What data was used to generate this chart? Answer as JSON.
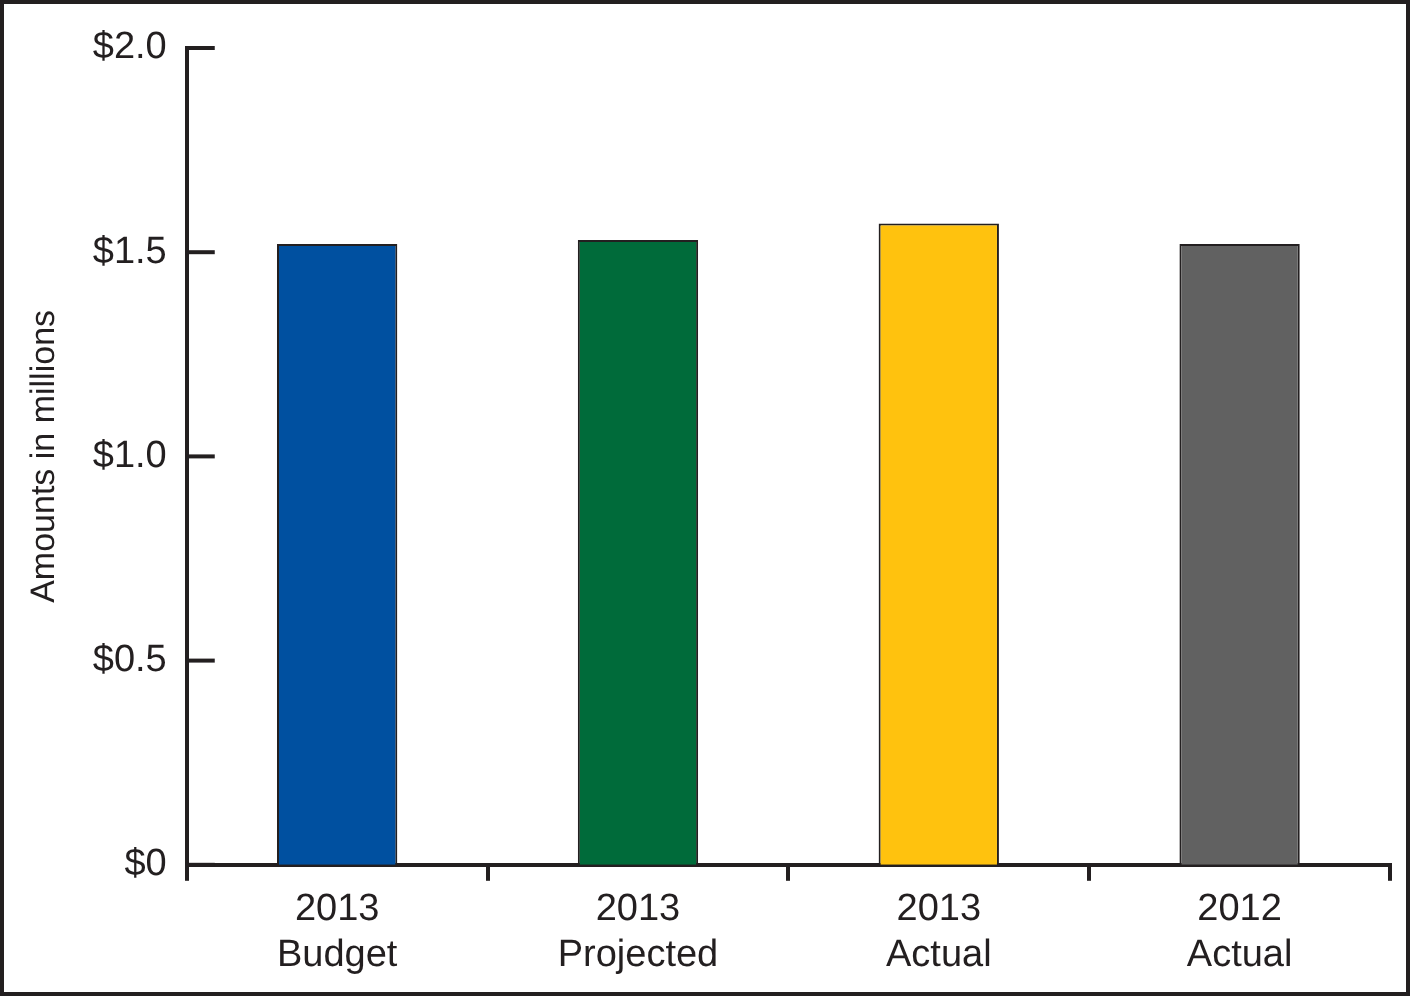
{
  "chart_data": {
    "type": "bar",
    "ylabel": "Amounts in millions",
    "categories": [
      "2013\nBudget",
      "2013\nProjected",
      "2013\nActual",
      "2012\nActual"
    ],
    "values": [
      1.52,
      1.53,
      1.57,
      1.52
    ],
    "colors": [
      "#0050a0",
      "#006b3a",
      "#ffc20e",
      "#616161"
    ],
    "ylim": [
      0,
      2.0
    ],
    "yticks": [
      {
        "value": 0,
        "label": "$0"
      },
      {
        "value": 0.5,
        "label": "$0.5"
      },
      {
        "value": 1.0,
        "label": "$1.0"
      },
      {
        "value": 1.5,
        "label": "$1.5"
      },
      {
        "value": 2.0,
        "label": "$2.0"
      }
    ],
    "grid": false,
    "legend": false
  }
}
